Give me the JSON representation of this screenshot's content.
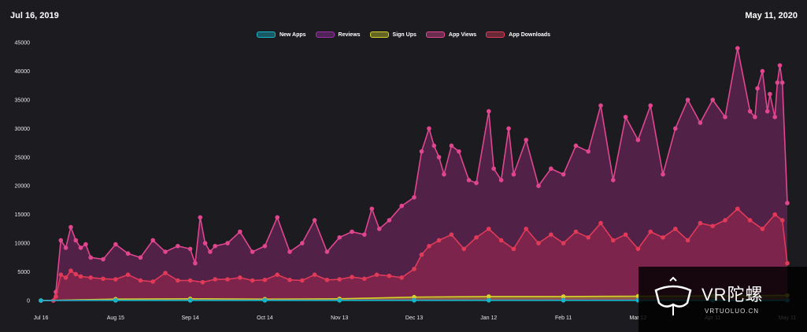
{
  "header": {
    "start_date": "Jul 16, 2019",
    "end_date": "May 11, 2020"
  },
  "legend": [
    {
      "label": "New Apps",
      "color": "#17b6c8"
    },
    {
      "label": "Reviews",
      "color": "#9b2fa6"
    },
    {
      "label": "Sign Ups",
      "color": "#d3d32c"
    },
    {
      "label": "App Views",
      "color": "#e0468e"
    },
    {
      "label": "App Downloads",
      "color": "#e13a58"
    }
  ],
  "watermark": {
    "brand": "VR陀螺",
    "url": "VRTUOLUO.CN"
  },
  "chart_data": {
    "type": "area",
    "title": "",
    "ylim": [
      0,
      45000
    ],
    "yticks": [
      0,
      5000,
      10000,
      15000,
      20000,
      25000,
      30000,
      35000,
      40000,
      45000
    ],
    "xlim": [
      0,
      300
    ],
    "xticks": [
      {
        "day": 0,
        "label": "Jul 16"
      },
      {
        "day": 30,
        "label": "Aug 15"
      },
      {
        "day": 60,
        "label": "Sep 14"
      },
      {
        "day": 90,
        "label": "Oct 14"
      },
      {
        "day": 120,
        "label": "Nov 13"
      },
      {
        "day": 150,
        "label": "Dec 13"
      },
      {
        "day": 180,
        "label": "Jan 12"
      },
      {
        "day": 210,
        "label": "Feb 11"
      },
      {
        "day": 240,
        "label": "Mar 12"
      },
      {
        "day": 270,
        "label": "Apr 11"
      },
      {
        "day": 300,
        "label": "May 11"
      }
    ],
    "series": [
      {
        "name": "App Views",
        "color": "#e0468e",
        "fill": "rgba(125,38,105,0.55)",
        "x": [
          0,
          5,
          6,
          8,
          10,
          12,
          14,
          16,
          18,
          20,
          25,
          30,
          35,
          40,
          45,
          50,
          55,
          60,
          62,
          64,
          66,
          68,
          70,
          75,
          80,
          85,
          90,
          95,
          100,
          105,
          110,
          115,
          120,
          125,
          130,
          133,
          136,
          140,
          145,
          150,
          153,
          156,
          158,
          160,
          162,
          165,
          168,
          172,
          175,
          180,
          182,
          185,
          188,
          190,
          195,
          200,
          205,
          210,
          215,
          220,
          225,
          230,
          235,
          240,
          245,
          250,
          255,
          260,
          265,
          270,
          275,
          280,
          285,
          287,
          288,
          290,
          292,
          293,
          295,
          296,
          297,
          298,
          300
        ],
        "y": [
          0,
          0,
          1500,
          10500,
          9200,
          12800,
          10500,
          9200,
          9800,
          7500,
          7200,
          9800,
          8200,
          7500,
          10500,
          8500,
          9500,
          9000,
          6500,
          14500,
          10000,
          8500,
          9500,
          10000,
          12000,
          8500,
          9500,
          14500,
          8500,
          10000,
          14000,
          8500,
          11000,
          12000,
          11500,
          16000,
          12500,
          14000,
          16500,
          18000,
          26000,
          30000,
          27000,
          25000,
          22000,
          27000,
          26000,
          21000,
          20500,
          33000,
          23000,
          21000,
          30000,
          22000,
          28000,
          20000,
          23000,
          22000,
          27000,
          26000,
          34000,
          21000,
          32000,
          28000,
          34000,
          22000,
          30000,
          35000,
          31000,
          35000,
          32000,
          44000,
          33000,
          32000,
          37000,
          40000,
          33000,
          36000,
          32000,
          38000,
          41000,
          38000,
          17000
        ]
      },
      {
        "name": "App Downloads",
        "color": "#e13a58",
        "fill": "rgba(160,40,80,0.55)",
        "x": [
          0,
          5,
          6,
          8,
          10,
          12,
          14,
          16,
          20,
          25,
          30,
          35,
          40,
          45,
          50,
          55,
          60,
          65,
          70,
          75,
          80,
          85,
          90,
          95,
          100,
          105,
          110,
          115,
          120,
          125,
          130,
          135,
          140,
          145,
          150,
          153,
          156,
          160,
          165,
          170,
          175,
          180,
          185,
          190,
          195,
          200,
          205,
          210,
          215,
          220,
          225,
          230,
          235,
          240,
          245,
          250,
          255,
          260,
          265,
          270,
          275,
          280,
          285,
          290,
          295,
          298,
          300
        ],
        "y": [
          0,
          0,
          700,
          4500,
          4000,
          5200,
          4600,
          4200,
          4000,
          3800,
          3700,
          4500,
          3500,
          3300,
          4800,
          3500,
          3500,
          3200,
          3700,
          3700,
          4000,
          3500,
          3600,
          4500,
          3600,
          3500,
          4500,
          3600,
          3700,
          4100,
          3800,
          4500,
          4300,
          4000,
          5500,
          8000,
          9500,
          10500,
          11500,
          9000,
          11000,
          12500,
          10500,
          9000,
          12500,
          10000,
          11500,
          10000,
          12000,
          11000,
          13500,
          10500,
          11500,
          9000,
          12000,
          11000,
          12500,
          10500,
          13500,
          13000,
          14000,
          16000,
          14000,
          12500,
          15000,
          14000,
          6500
        ]
      },
      {
        "name": "Sign Ups",
        "color": "#d3d32c",
        "fill": "rgba(160,160,40,0.5)",
        "x": [
          0,
          30,
          60,
          90,
          120,
          150,
          180,
          210,
          240,
          270,
          300
        ],
        "y": [
          0,
          250,
          300,
          250,
          300,
          600,
          700,
          700,
          750,
          800,
          900
        ]
      },
      {
        "name": "Reviews",
        "color": "#9b2fa6",
        "fill": "rgba(110,30,120,0.5)",
        "x": [
          0,
          30,
          60,
          90,
          120,
          150,
          180,
          210,
          240,
          270,
          300
        ],
        "y": [
          0,
          50,
          60,
          60,
          70,
          80,
          80,
          90,
          90,
          100,
          110
        ]
      },
      {
        "name": "New Apps",
        "color": "#17b6c8",
        "fill": "rgba(23,182,200,0.5)",
        "x": [
          0,
          30,
          60,
          90,
          120,
          150,
          180,
          210,
          240,
          270,
          300
        ],
        "y": [
          0,
          20,
          20,
          20,
          20,
          30,
          30,
          30,
          30,
          30,
          30
        ]
      }
    ]
  }
}
